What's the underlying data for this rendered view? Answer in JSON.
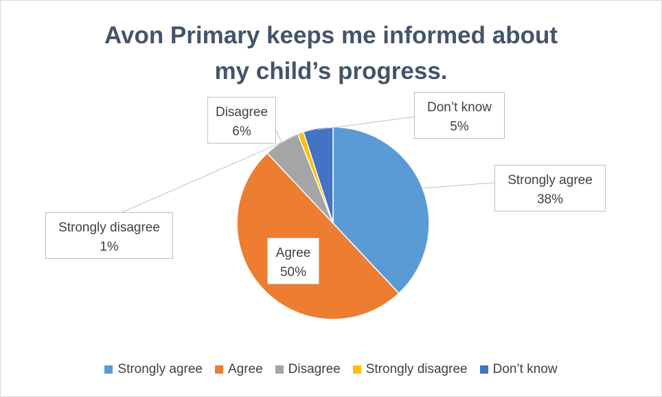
{
  "chart_data": {
    "type": "pie",
    "title_lines": [
      "Avon Primary keeps me informed about",
      "my child’s progress."
    ],
    "slices": [
      {
        "label": "Strongly agree",
        "value": 38,
        "pct_label": "38%",
        "color": "#5b9bd5"
      },
      {
        "label": "Agree",
        "value": 50,
        "pct_label": "50%",
        "color": "#ed7d31"
      },
      {
        "label": "Disagree",
        "value": 6,
        "pct_label": "6%",
        "color": "#a5a5a5"
      },
      {
        "label": "Strongly disagree",
        "value": 1,
        "pct_label": "1%",
        "color": "#ffc000"
      },
      {
        "label": "Don’t know",
        "value": 5,
        "pct_label": "5%",
        "color": "#4472c4"
      }
    ],
    "legend_position": "bottom"
  }
}
